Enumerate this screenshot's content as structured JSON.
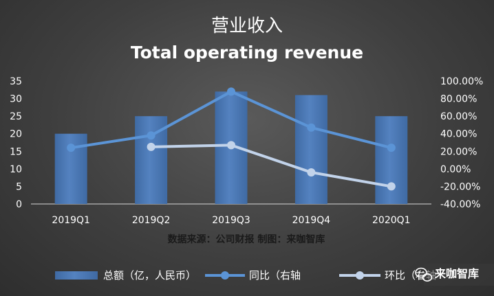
{
  "chart_data": {
    "type": "bar",
    "title": "营业收入",
    "subtitle": "Total operating revenue",
    "categories": [
      "2019Q1",
      "2019Q2",
      "2019Q3",
      "2019Q4",
      "2020Q1"
    ],
    "series": [
      {
        "name": "总额（亿，人民币）",
        "kind": "bar",
        "axis": "left",
        "values": [
          20,
          25,
          32,
          31,
          25
        ]
      },
      {
        "name": "同比（右轴",
        "kind": "line",
        "axis": "right",
        "values": [
          0.24,
          0.38,
          0.88,
          0.47,
          0.24
        ]
      },
      {
        "name": "环比（右轴",
        "kind": "line",
        "axis": "right",
        "values": [
          null,
          0.25,
          0.27,
          -0.04,
          -0.2
        ]
      }
    ],
    "y_left": {
      "min": 0,
      "max": 35,
      "ticks": [
        "0",
        "5",
        "10",
        "15",
        "20",
        "25",
        "30",
        "35"
      ]
    },
    "y_right": {
      "min": -0.4,
      "max": 1.0,
      "ticks": [
        "-40.00%",
        "-20.00%",
        "0.00%",
        "20.00%",
        "40.00%",
        "60.00%",
        "80.00%",
        "100.00%"
      ]
    },
    "grid": false,
    "legend_placement": "bottom",
    "source_note": "数据来源：公司财报 制图：来咖智库",
    "watermark": "来咖智库",
    "colors": {
      "bar": "#4a78b4",
      "bar_highlight": "#6c98d4",
      "yoy_line": "#5b94d6",
      "qoq_line": "#c2d3ea"
    }
  }
}
